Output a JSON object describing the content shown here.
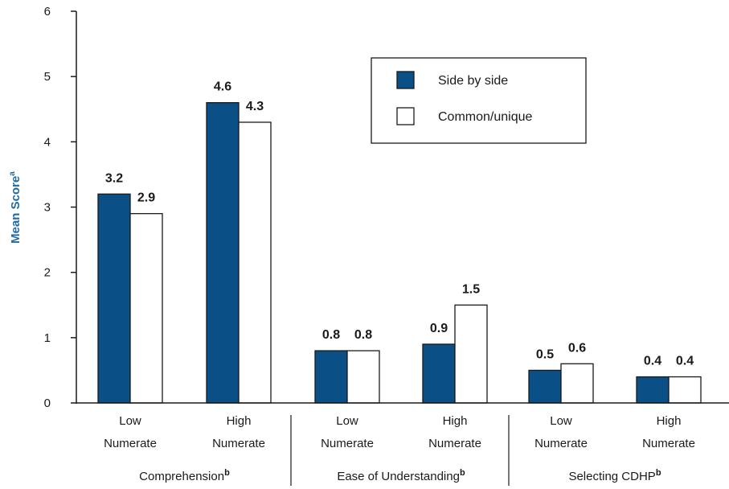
{
  "chart_data": {
    "type": "bar",
    "ylabel": "Mean Score",
    "ylabel_sup": "a",
    "ylim": [
      0,
      6
    ],
    "yticks": [
      "0",
      "1",
      "2",
      "3",
      "4",
      "5",
      "6"
    ],
    "categories": [
      {
        "line1": "Low",
        "line2": "Numerate"
      },
      {
        "line1": "High",
        "line2": "Numerate"
      },
      {
        "line1": "Low",
        "line2": "Numerate"
      },
      {
        "line1": "High",
        "line2": "Numerate"
      },
      {
        "line1": "Low",
        "line2": "Numerate"
      },
      {
        "line1": "High",
        "line2": "Numerate"
      }
    ],
    "groups": [
      {
        "label": "Comprehension",
        "sup": "b"
      },
      {
        "label": "Ease of Understanding",
        "sup": "b"
      },
      {
        "label": "Selecting CDHP",
        "sup": "b"
      }
    ],
    "series": [
      {
        "name": "Side by side",
        "values": [
          3.2,
          4.6,
          0.8,
          0.9,
          0.5,
          0.4
        ],
        "labels": [
          "3.2",
          "4.6",
          "0.8",
          "0.9",
          "0.5",
          "0.4"
        ],
        "color": "#0a4f86"
      },
      {
        "name": "Common/unique",
        "values": [
          2.9,
          4.3,
          0.8,
          1.5,
          0.6,
          0.4
        ],
        "labels": [
          "2.9",
          "4.3",
          "0.8",
          "1.5",
          "0.6",
          "0.4"
        ],
        "color": "#ffffff"
      }
    ],
    "legend_position": "top-right",
    "grid": false
  },
  "colors": {
    "axis": "#1a1a1a",
    "ylabel": "#1f6aa5",
    "text": "#1a1a1a"
  }
}
